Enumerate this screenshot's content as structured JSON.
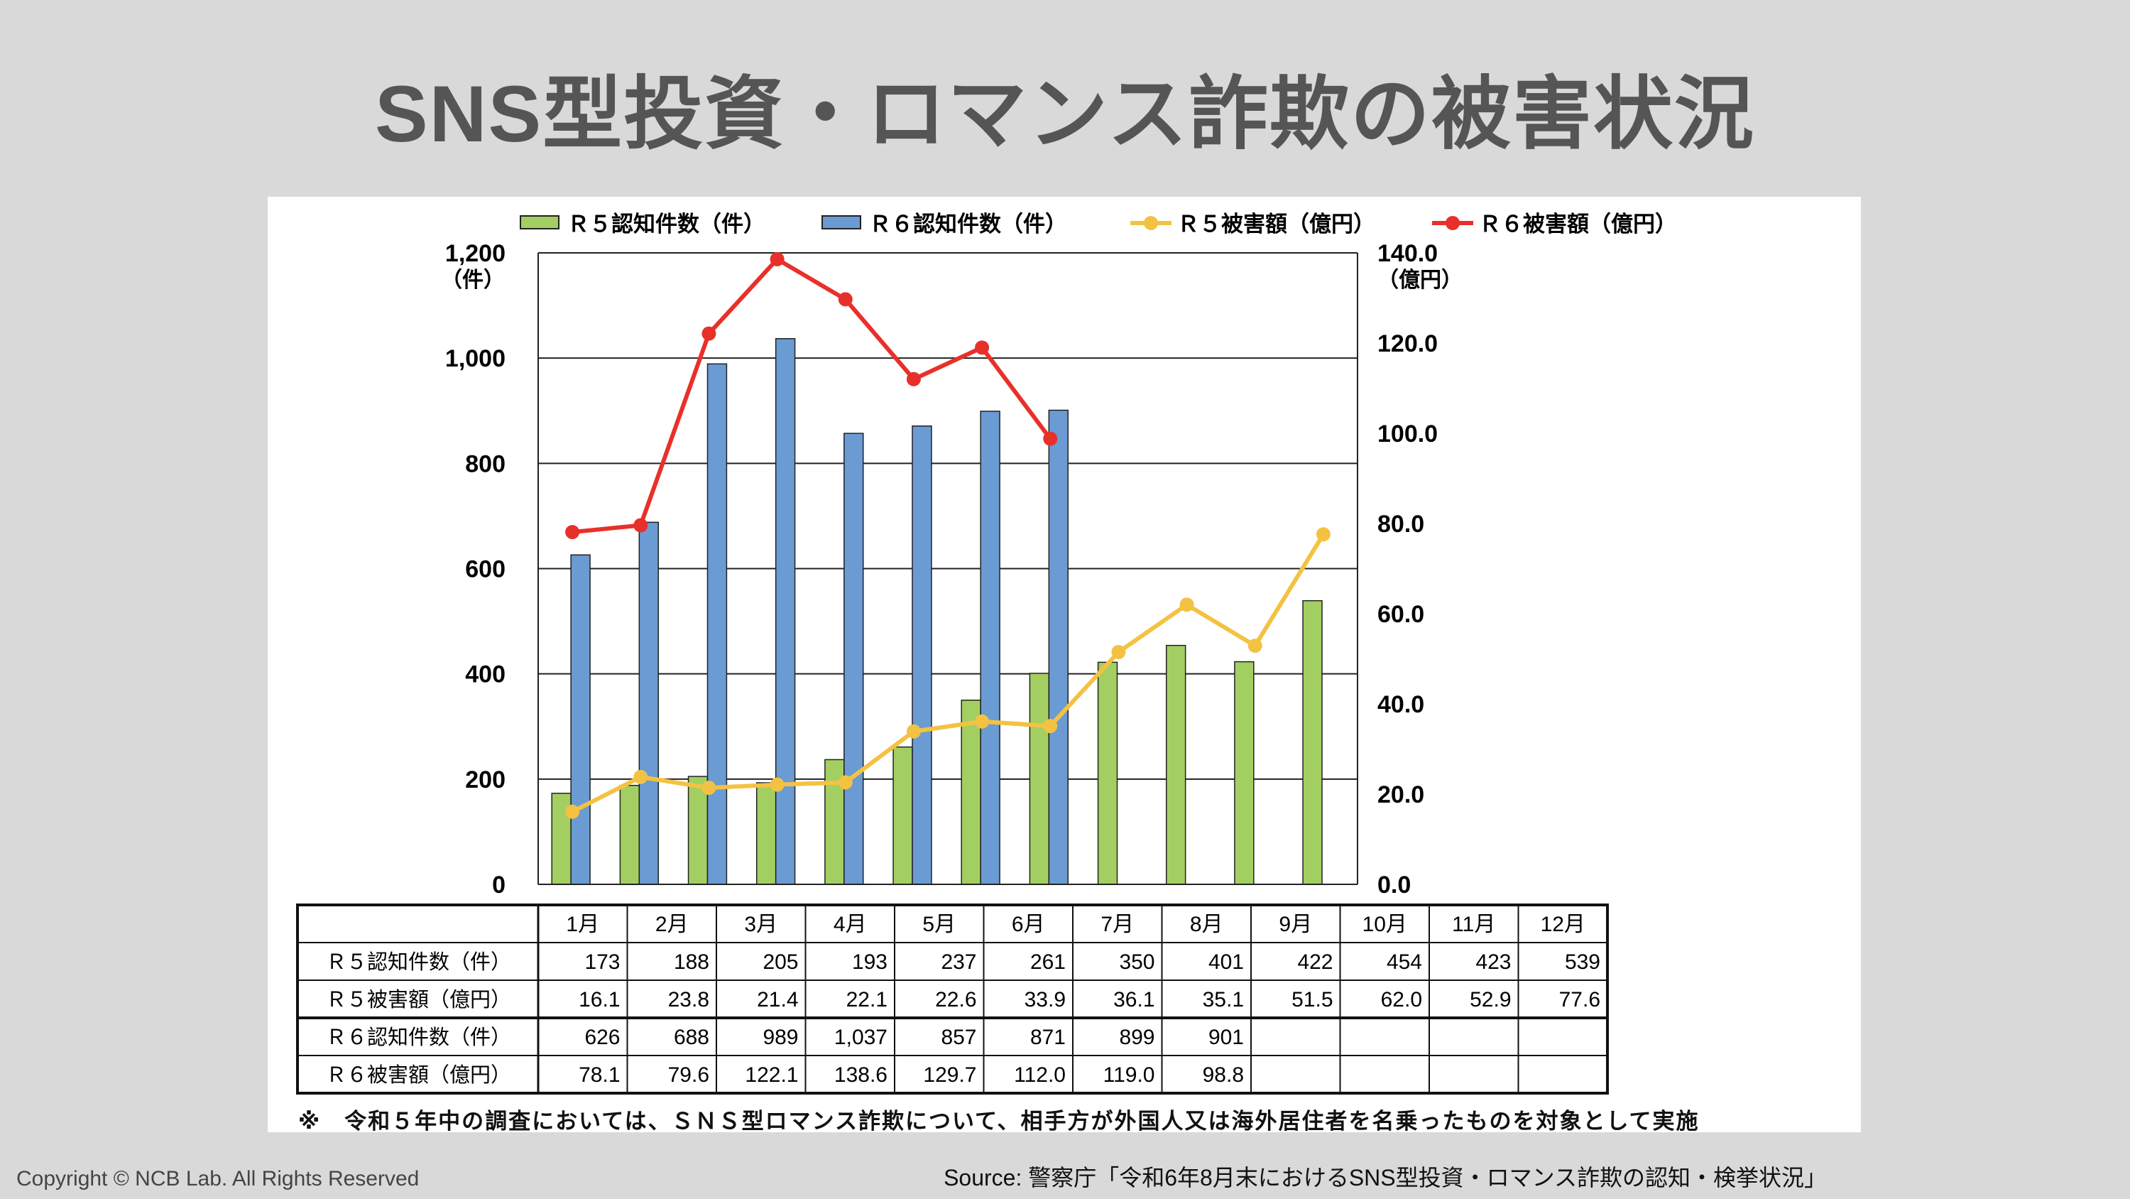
{
  "title": "SNS型投資・ロマンス詐欺の被害状況",
  "copyright": "Copyright © NCB Lab. All Rights Reserved",
  "source": "Source: 警察庁「令和6年8月末におけるSNS型投資・ロマンス詐欺の認知・検挙状況」",
  "note": "※　令和５年中の調査においては、ＳＮＳ型ロマンス詐欺について、相手方が外国人又は海外居住者を名乗ったものを対象として実施",
  "chart_data": {
    "type": "bar+line",
    "categories": [
      "1月",
      "2月",
      "3月",
      "4月",
      "5月",
      "6月",
      "7月",
      "8月",
      "9月",
      "10月",
      "11月",
      "12月"
    ],
    "left_axis": {
      "unit": "（件）",
      "ylim": [
        0,
        1200
      ],
      "ticks": [
        "0",
        "200",
        "400",
        "600",
        "800",
        "1,000",
        "1,200"
      ]
    },
    "right_axis": {
      "unit": "（億円）",
      "ylim": [
        0,
        140
      ],
      "ticks": [
        "0.0",
        "20.0",
        "40.0",
        "60.0",
        "80.0",
        "100.0",
        "120.0",
        "140.0"
      ]
    },
    "grid": true,
    "legend_position": "top",
    "series": [
      {
        "name": "Ｒ５認知件数（件）",
        "type": "bar",
        "axis": "left",
        "color": "#a3cf62",
        "values": [
          173,
          188,
          205,
          193,
          237,
          261,
          350,
          401,
          422,
          454,
          423,
          539
        ],
        "labels": [
          "173",
          "188",
          "205",
          "193",
          "237",
          "261",
          "350",
          "401",
          "422",
          "454",
          "423",
          "539"
        ]
      },
      {
        "name": "Ｒ５被害額（億円）",
        "type": "line",
        "axis": "right",
        "color": "#f4c242",
        "values": [
          16.1,
          23.8,
          21.4,
          22.1,
          22.6,
          33.9,
          36.1,
          35.1,
          51.5,
          62.0,
          52.9,
          77.6
        ],
        "labels": [
          "16.1",
          "23.8",
          "21.4",
          "22.1",
          "22.6",
          "33.9",
          "36.1",
          "35.1",
          "51.5",
          "62.0",
          "52.9",
          "77.6"
        ]
      },
      {
        "name": "Ｒ６認知件数（件）",
        "type": "bar",
        "axis": "left",
        "color": "#6a9bd3",
        "values": [
          626,
          688,
          989,
          1037,
          857,
          871,
          899,
          901,
          null,
          null,
          null,
          null
        ],
        "labels": [
          "626",
          "688",
          "989",
          "1,037",
          "857",
          "871",
          "899",
          "901",
          "",
          "",
          "",
          ""
        ]
      },
      {
        "name": "Ｒ６被害額（億円）",
        "type": "line",
        "axis": "right",
        "color": "#e8302a",
        "values": [
          78.1,
          79.6,
          122.1,
          138.6,
          129.7,
          112.0,
          119.0,
          98.8,
          null,
          null,
          null,
          null
        ],
        "labels": [
          "78.1",
          "79.6",
          "122.1",
          "138.6",
          "129.7",
          "112.0",
          "119.0",
          "98.8",
          "",
          "",
          "",
          ""
        ]
      }
    ],
    "legend_order": [
      0,
      2,
      1,
      3
    ]
  }
}
